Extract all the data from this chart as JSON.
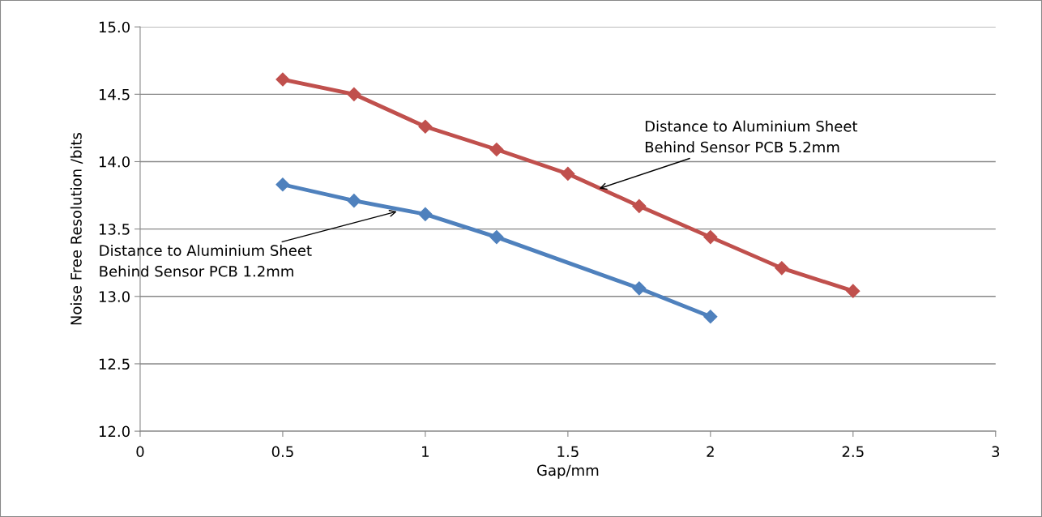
{
  "chart_data": {
    "type": "line",
    "xlabel": "Gap/mm",
    "ylabel": "Noise Free Resolution /bits",
    "series": [
      {
        "color": "#c0504d",
        "x": [
          0.5,
          0.75,
          1,
          1.25,
          1.5,
          1.75,
          2,
          2.25,
          2.5
        ],
        "values": [
          14.61,
          14.5,
          14.26,
          14.09,
          13.91,
          13.67,
          13.44,
          13.21,
          13.04
        ]
      },
      {
        "color": "#4f81bd",
        "x": [
          0.5,
          0.75,
          1,
          1.25,
          1.75,
          2
        ],
        "values": [
          13.83,
          13.71,
          13.61,
          13.44,
          13.06,
          12.85
        ]
      }
    ],
    "xlim": [
      0,
      3
    ],
    "xticks": [
      0,
      0.5,
      1,
      1.5,
      2,
      2.5,
      3
    ],
    "ylim": [
      12,
      15
    ],
    "yticks": [
      {
        "value": 12,
        "label": "12.0"
      },
      {
        "value": 12.5,
        "label": "12.5"
      },
      {
        "value": 13,
        "label": "13.0"
      },
      {
        "value": 13.5,
        "label": "13.5"
      },
      {
        "value": 14,
        "label": "14.0"
      },
      {
        "value": 14.5,
        "label": "14.5"
      },
      {
        "value": 15,
        "label": "15.0"
      }
    ],
    "grid": "y",
    "marker": "diamond",
    "line_style": "solid",
    "legend": false,
    "annotations": [
      {
        "text": "Distance to Aluminium Sheet\nBehind Sensor PCB 5.2mm",
        "x": 1.61,
        "y": 13.8
      },
      {
        "text": "Distance to Aluminium Sheet\nBehind Sensor PCB 1.2mm",
        "x": 0.9,
        "y": 13.63
      }
    ]
  }
}
